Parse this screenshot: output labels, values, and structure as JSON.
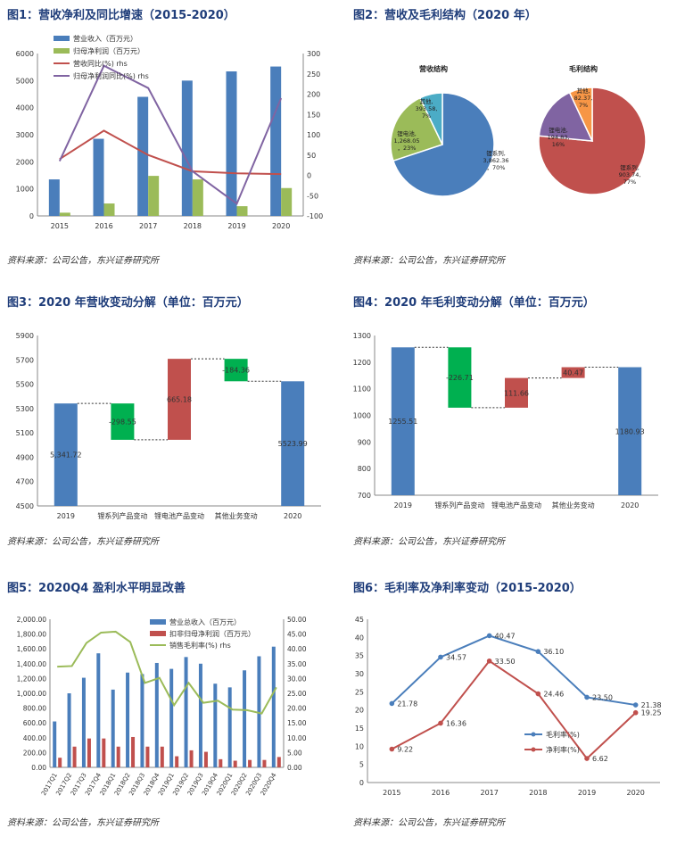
{
  "source_note": "资料来源：公司公告，东兴证券研究所",
  "colors": {
    "blue": "#4a7ebb",
    "green": "#9bbb59",
    "red": "#c0504d",
    "purple": "#8064a2",
    "orange": "#f79646",
    "lightblue": "#4bacc6",
    "gray": "#888888"
  },
  "chart_data": [
    {
      "id": "fig1",
      "type": "bar",
      "title": "图1：营收净利及同比增速（2015-2020）",
      "categories": [
        "2015",
        "2016",
        "2017",
        "2018",
        "2019",
        "2020"
      ],
      "ylim": [
        0,
        6000
      ],
      "y2lim": [
        -100,
        300
      ],
      "yticks": [
        "0",
        "1000",
        "2000",
        "3000",
        "4000",
        "5000",
        "6000"
      ],
      "y2ticks": [
        "-100",
        "-50",
        "0",
        "50",
        "100",
        "150",
        "200",
        "250",
        "300"
      ],
      "series": [
        {
          "name": "营业收入（百万元）",
          "kind": "bar",
          "axis": "left",
          "color": "#4a7ebb",
          "values": [
            1350,
            2850,
            4400,
            5000,
            5340,
            5520
          ]
        },
        {
          "name": "归母净利润（百万元）",
          "kind": "bar",
          "axis": "left",
          "color": "#9bbb59",
          "values": [
            120,
            460,
            1480,
            1350,
            360,
            1030
          ]
        },
        {
          "name": "营收同比(%) rhs",
          "kind": "line",
          "axis": "right",
          "color": "#c0504d",
          "values": [
            40,
            110,
            50,
            10,
            5,
            3
          ]
        },
        {
          "name": "归母净利润同比(%) rhs",
          "kind": "line",
          "axis": "right",
          "color": "#8064a2",
          "values": [
            35,
            270,
            215,
            10,
            -70,
            190
          ]
        }
      ]
    },
    {
      "id": "fig2",
      "type": "pie",
      "title": "图2：营收及毛利结构（2020 年）",
      "pies": [
        {
          "name": "营收结构",
          "slices": [
            {
              "label": "锂系列,",
              "value_label": "3,862.36",
              "pct": "，70%",
              "value": 3862.36,
              "color": "#4a7ebb"
            },
            {
              "label": "锂电池,",
              "value_label": "1,268.05",
              "pct": "，23%",
              "value": 1268.05,
              "color": "#9bbb59"
            },
            {
              "label": "其他,",
              "value_label": "393.58,",
              "pct": "7%",
              "value": 393.58,
              "color": "#4bacc6"
            }
          ]
        },
        {
          "name": "毛利结构",
          "slices": [
            {
              "label": "锂系列,",
              "value_label": "903.74,",
              "pct": "77%",
              "value": 903.74,
              "color": "#c0504d"
            },
            {
              "label": "锂电池,",
              "value_label": "194.83,",
              "pct": "16%",
              "value": 194.83,
              "color": "#8064a2"
            },
            {
              "label": "其他,",
              "value_label": "82.37,",
              "pct": "7%",
              "value": 82.37,
              "color": "#f79646"
            }
          ]
        }
      ]
    },
    {
      "id": "fig3",
      "type": "bar",
      "title": "图3：2020 年营收变动分解（单位：百万元）",
      "categories": [
        "2019",
        "锂系列产品变动",
        "锂电池产品变动",
        "其他业务变动",
        "2020"
      ],
      "ylim": [
        4500,
        5900
      ],
      "yticks": [
        "4500",
        "4700",
        "4900",
        "5100",
        "5300",
        "5500",
        "5700",
        "5900"
      ],
      "steps": [
        {
          "label": "5,341.72",
          "start": 4500,
          "end": 5341.72,
          "color": "#4a7ebb"
        },
        {
          "label": "-298.55",
          "start": 5341.72,
          "end": 5043.17,
          "color": "#00b050"
        },
        {
          "label": "665.18",
          "start": 5043.17,
          "end": 5708.35,
          "color": "#c0504d"
        },
        {
          "label": "-184.36",
          "start": 5708.35,
          "end": 5523.99,
          "color": "#00b050"
        },
        {
          "label": "5523.99",
          "start": 4500,
          "end": 5523.99,
          "color": "#4a7ebb"
        }
      ]
    },
    {
      "id": "fig4",
      "type": "bar",
      "title": "图4：2020 年毛利变动分解（单位：百万元）",
      "categories": [
        "2019",
        "锂系列产品变动",
        "锂电池产品变动",
        "其他业务变动",
        "2020"
      ],
      "ylim": [
        700,
        1300
      ],
      "yticks": [
        "700",
        "800",
        "900",
        "1000",
        "1100",
        "1200",
        "1300"
      ],
      "steps": [
        {
          "label": "1255.51",
          "start": 700,
          "end": 1255.51,
          "color": "#4a7ebb"
        },
        {
          "label": "-226.71",
          "start": 1255.51,
          "end": 1028.8,
          "color": "#00b050"
        },
        {
          "label": "111.66",
          "start": 1028.8,
          "end": 1140.46,
          "color": "#c0504d"
        },
        {
          "label": "40.47",
          "start": 1140.46,
          "end": 1180.93,
          "color": "#c0504d"
        },
        {
          "label": "1180.93",
          "start": 700,
          "end": 1180.93,
          "color": "#4a7ebb"
        }
      ]
    },
    {
      "id": "fig5",
      "type": "bar",
      "title": "图5：2020Q4 盈利水平明显改善",
      "categories": [
        "2017Q1",
        "2017Q2",
        "2017Q3",
        "2017Q4",
        "2018Q1",
        "2018Q2",
        "2018Q3",
        "2018Q4",
        "2019Q1",
        "2019Q2",
        "2019Q3",
        "2019Q4",
        "2020Q1",
        "2020Q2",
        "2020Q3",
        "2020Q4"
      ],
      "ylim": [
        0,
        2000
      ],
      "y2lim": [
        0,
        50
      ],
      "yticks": [
        "0.00",
        "200.00",
        "400.00",
        "600.00",
        "800.00",
        "1,000.00",
        "1,200.00",
        "1,400.00",
        "1,600.00",
        "1,800.00",
        "2,000.00"
      ],
      "y2ticks": [
        "0.00",
        "5.00",
        "10.00",
        "15.00",
        "20.00",
        "25.00",
        "30.00",
        "35.00",
        "40.00",
        "45.00",
        "50.00"
      ],
      "series": [
        {
          "name": "营业总收入（百万元）",
          "kind": "bar",
          "axis": "left",
          "color": "#4a7ebb",
          "values": [
            620,
            1000,
            1210,
            1540,
            1050,
            1280,
            1260,
            1410,
            1330,
            1490,
            1400,
            1130,
            1080,
            1310,
            1500,
            1630
          ]
        },
        {
          "name": "扣非归母净利润（百万元）",
          "kind": "bar",
          "axis": "left",
          "color": "#c0504d",
          "values": [
            130,
            280,
            390,
            390,
            280,
            410,
            280,
            280,
            150,
            230,
            210,
            110,
            90,
            100,
            100,
            140
          ]
        },
        {
          "name": "销售毛利率(%) rhs",
          "kind": "line",
          "axis": "right",
          "color": "#9bbb59",
          "values": [
            34,
            34.2,
            42,
            45.5,
            45.8,
            42.3,
            28.5,
            30.2,
            21,
            28.5,
            21.8,
            22.5,
            19.5,
            19.3,
            18.2,
            27
          ]
        }
      ]
    },
    {
      "id": "fig6",
      "type": "line",
      "title": "图6：毛利率及净利率变动（2015-2020）",
      "categories": [
        "2015",
        "2016",
        "2017",
        "2018",
        "2019",
        "2020"
      ],
      "ylim": [
        0,
        45
      ],
      "yticks": [
        "0",
        "5",
        "10",
        "15",
        "20",
        "25",
        "30",
        "35",
        "40",
        "45"
      ],
      "series": [
        {
          "name": "毛利率(%)",
          "color": "#4a7ebb",
          "values": [
            21.78,
            34.57,
            40.47,
            36.1,
            23.5,
            21.38
          ],
          "labels": [
            "21.78",
            "34.57",
            "40.47",
            "36.10",
            "23.50",
            "21.38"
          ]
        },
        {
          "name": "净利率(%)",
          "color": "#c0504d",
          "values": [
            9.22,
            16.36,
            33.5,
            24.46,
            6.62,
            19.25
          ],
          "labels": [
            "9.22",
            "16.36",
            "33.50",
            "24.46",
            "6.62",
            "19.25"
          ]
        }
      ]
    }
  ]
}
